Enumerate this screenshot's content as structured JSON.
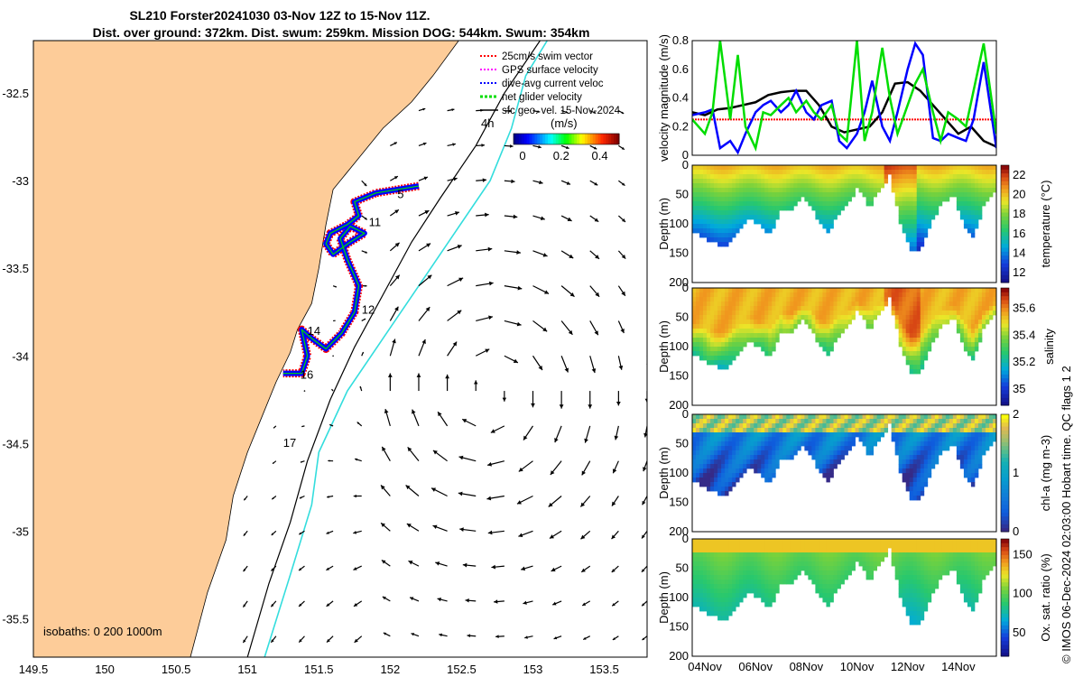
{
  "title": {
    "line1": "SL210 Forster20241030 03-Nov 12Z to 15-Nov 11Z.",
    "line2": "Dist. over ground: 372km. Dist. swum: 259km. Mission DOG: 544km. Swum: 354km"
  },
  "credit": "© IMOS 06-Dec-2024 02:03:00 Hobart time. QC flags 1  2",
  "colors": {
    "land": "#FDCC99",
    "swim_vector": "#FF0000",
    "gps_velocity": "#FF00FF",
    "dive_avg_current": "#0000FF",
    "net_glider_velocity": "#00DD00",
    "sfc_geo_vel": "#000000",
    "glider_track_cyan": "#33DDDD"
  },
  "chart_data": [
    {
      "id": "map",
      "type": "scatter",
      "title": "",
      "xlabel": "",
      "ylabel": "",
      "xlim": [
        149.5,
        153.8
      ],
      "ylim": [
        -35.72,
        -32.2
      ],
      "xticks": [
        "149.5",
        "150",
        "150.5",
        "151",
        "151.5",
        "152",
        "152.5",
        "153",
        "153.5"
      ],
      "yticks": [
        "-32.5",
        "-33",
        "-33.5",
        "-34",
        "-34.5",
        "-35",
        "-35.5"
      ],
      "legend": {
        "placement": "top-right",
        "entries": [
          "25cm/s swim vector",
          "GPS surface velocity",
          "dive-avg current veloc",
          "net glider velocity",
          "sfc geo. vel. 15-Nov-2024"
        ]
      },
      "colorbar": {
        "label": "(m/s)",
        "ticks": [
          "0",
          "0.2",
          "0.4"
        ],
        "prefix_label": "4h"
      },
      "isobaths_label": "isobaths: 0   200  1000m",
      "day_labels": [
        {
          "text": "5",
          "lon": 152.05,
          "lat": -33.1
        },
        {
          "text": "11",
          "lon": 151.85,
          "lat": -33.26
        },
        {
          "text": "12",
          "lon": 151.8,
          "lat": -33.76
        },
        {
          "text": "14",
          "lon": 151.42,
          "lat": -33.88
        },
        {
          "text": "16",
          "lon": 151.37,
          "lat": -34.13
        },
        {
          "text": "17",
          "lon": 151.25,
          "lat": -34.52
        }
      ],
      "glider_track": [
        [
          152.2,
          -33.03
        ],
        [
          151.9,
          -33.07
        ],
        [
          151.75,
          -33.12
        ],
        [
          151.78,
          -33.2
        ],
        [
          151.7,
          -33.25
        ],
        [
          151.58,
          -33.3
        ],
        [
          151.55,
          -33.36
        ],
        [
          151.6,
          -33.42
        ],
        [
          151.72,
          -33.35
        ],
        [
          151.82,
          -33.3
        ],
        [
          151.72,
          -33.26
        ],
        [
          151.65,
          -33.33
        ],
        [
          151.7,
          -33.45
        ],
        [
          151.78,
          -33.6
        ],
        [
          151.75,
          -33.75
        ],
        [
          151.66,
          -33.87
        ],
        [
          151.55,
          -33.96
        ],
        [
          151.45,
          -33.9
        ],
        [
          151.38,
          -33.85
        ],
        [
          151.42,
          -34.0
        ],
        [
          151.38,
          -34.1
        ],
        [
          151.25,
          -34.1
        ]
      ]
    },
    {
      "id": "velocity",
      "type": "line",
      "ylabel": "velocity magnitude (m/s)",
      "ylim": [
        0,
        0.8
      ],
      "yticks": [
        "0",
        "0.2",
        "0.4",
        "0.6",
        "0.8"
      ],
      "xlim": [
        "03-Nov 12Z",
        "15-Nov 11Z"
      ],
      "series": [
        {
          "name": "25cm/s swim vector",
          "color": "#FF0000",
          "x": [
            3.5,
            15.5
          ],
          "values": [
            0.25,
            0.25
          ]
        },
        {
          "name": "sfc geo. vel. 15-Nov-2024",
          "color": "#000000",
          "x": [
            3.5,
            4,
            4.5,
            5,
            5.5,
            6,
            6.5,
            7,
            7.5,
            8,
            8.5,
            9,
            9.5,
            10,
            10.5,
            11,
            11.5,
            12,
            12.5,
            13,
            13.5,
            14,
            14.5,
            15,
            15.5
          ],
          "values": [
            0.3,
            0.28,
            0.32,
            0.33,
            0.35,
            0.37,
            0.42,
            0.44,
            0.45,
            0.45,
            0.35,
            0.2,
            0.16,
            0.18,
            0.2,
            0.3,
            0.5,
            0.51,
            0.45,
            0.35,
            0.25,
            0.15,
            0.2,
            0.1,
            0.06
          ]
        },
        {
          "name": "dive-avg current veloc",
          "color": "#0000FF",
          "x": [
            3.5,
            4,
            4.3,
            4.6,
            5,
            5.3,
            5.6,
            6,
            6.3,
            6.6,
            7,
            7.3,
            7.6,
            8,
            8.3,
            8.6,
            9,
            9.3,
            9.6,
            10,
            10.3,
            10.6,
            11,
            11.3,
            11.6,
            12,
            12.3,
            12.6,
            13,
            13.3,
            13.6,
            14,
            14.3,
            14.6,
            15,
            15.5
          ],
          "values": [
            0.28,
            0.3,
            0.32,
            0.05,
            0.1,
            0.02,
            0.15,
            0.3,
            0.35,
            0.38,
            0.3,
            0.35,
            0.45,
            0.3,
            0.25,
            0.35,
            0.38,
            0.1,
            0.05,
            0.15,
            0.3,
            0.52,
            0.2,
            0.1,
            0.3,
            0.6,
            0.78,
            0.7,
            0.12,
            0.1,
            0.15,
            0.12,
            0.1,
            0.25,
            0.65,
            0.05
          ]
        },
        {
          "name": "net glider velocity",
          "color": "#00DD00",
          "x": [
            3.5,
            4,
            4.3,
            4.6,
            5,
            5.3,
            5.6,
            6,
            6.3,
            6.6,
            7,
            7.3,
            7.6,
            8,
            8.3,
            8.6,
            9,
            9.3,
            9.6,
            10,
            10.3,
            10.6,
            11,
            11.3,
            11.6,
            12,
            12.3,
            12.6,
            13,
            13.3,
            13.6,
            14,
            14.3,
            14.6,
            15,
            15.5
          ],
          "values": [
            0.25,
            0.15,
            0.3,
            0.8,
            0.25,
            0.7,
            0.2,
            0.05,
            0.3,
            0.28,
            0.35,
            0.4,
            0.3,
            0.38,
            0.3,
            0.25,
            0.35,
            0.15,
            0.1,
            0.8,
            0.1,
            0.3,
            0.75,
            0.4,
            0.15,
            0.35,
            0.5,
            0.6,
            0.3,
            0.1,
            0.3,
            0.25,
            0.2,
            0.45,
            0.78,
            0.15
          ]
        }
      ]
    },
    {
      "id": "temperature",
      "type": "heatmap",
      "ylabel": "Depth (m)",
      "ylim": [
        0,
        200
      ],
      "yticks": [
        "0",
        "50",
        "100",
        "150",
        "200"
      ],
      "colorbar": {
        "label": "temperature (°C)",
        "ticks": [
          "12",
          "14",
          "16",
          "18",
          "20",
          "22"
        ],
        "range": [
          11,
          23
        ]
      }
    },
    {
      "id": "salinity",
      "type": "heatmap",
      "ylabel": "Depth (m)",
      "ylim": [
        0,
        200
      ],
      "yticks": [
        "0",
        "50",
        "100",
        "150",
        "200"
      ],
      "colorbar": {
        "label": "salinity",
        "ticks": [
          "35",
          "35.2",
          "35.4",
          "35.6"
        ],
        "range": [
          34.88,
          35.75
        ]
      }
    },
    {
      "id": "chla",
      "type": "heatmap",
      "ylabel": "Depth (m)",
      "ylim": [
        0,
        200
      ],
      "yticks": [
        "0",
        "50",
        "100",
        "150",
        "200"
      ],
      "colorbar": {
        "label": "chl-a (mg m-3)",
        "ticks": [
          "0",
          "1",
          "2"
        ],
        "range": [
          0,
          2
        ]
      }
    },
    {
      "id": "oxygen",
      "type": "heatmap",
      "ylabel": "Depth (m)",
      "ylim": [
        0,
        200
      ],
      "yticks": [
        "0",
        "50",
        "100",
        "150",
        "200"
      ],
      "xticks": [
        "04Nov",
        "06Nov",
        "08Nov",
        "10Nov",
        "12Nov",
        "14Nov"
      ],
      "colorbar": {
        "label": "Ox. sat. ratio (%)",
        "ticks": [
          "50",
          "100",
          "150"
        ],
        "range": [
          20,
          170
        ]
      }
    }
  ]
}
